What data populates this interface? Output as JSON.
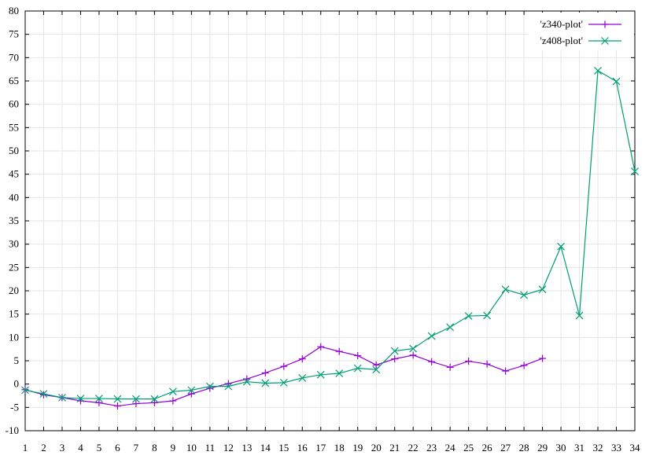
{
  "chart_data": {
    "type": "line",
    "title": "",
    "xlabel": "",
    "ylabel": "",
    "xlim": [
      1,
      34
    ],
    "ylim": [
      -10,
      80
    ],
    "x_ticks": [
      1,
      2,
      3,
      4,
      5,
      6,
      7,
      8,
      9,
      10,
      11,
      12,
      13,
      14,
      15,
      16,
      17,
      18,
      19,
      20,
      21,
      22,
      23,
      24,
      25,
      26,
      27,
      28,
      29,
      30,
      31,
      32,
      33,
      34
    ],
    "y_ticks": [
      -10,
      -5,
      0,
      5,
      10,
      15,
      20,
      25,
      30,
      35,
      40,
      45,
      50,
      55,
      60,
      65,
      70,
      75,
      80
    ],
    "grid": true,
    "legend_position": "top-right",
    "series": [
      {
        "name": "'z340-plot'",
        "color": "#9400d3",
        "marker": "plus",
        "x": [
          1,
          2,
          3,
          4,
          5,
          6,
          7,
          8,
          9,
          10,
          11,
          12,
          13,
          14,
          15,
          16,
          17,
          18,
          19,
          20,
          21,
          22,
          23,
          24,
          25,
          26,
          27,
          28,
          29
        ],
        "values": [
          -1.2,
          -2.3,
          -2.9,
          -3.6,
          -4.0,
          -4.7,
          -4.2,
          -4.0,
          -3.6,
          -2.1,
          -0.9,
          0.1,
          1.1,
          2.4,
          3.8,
          5.4,
          8.0,
          7.0,
          6.1,
          4.1,
          5.4,
          6.2,
          4.8,
          3.6,
          4.9,
          4.3,
          2.8,
          4.0,
          5.5
        ]
      },
      {
        "name": "'z408-plot'",
        "color": "#009e73",
        "marker": "cross",
        "x": [
          1,
          2,
          3,
          4,
          5,
          6,
          7,
          8,
          9,
          10,
          11,
          12,
          13,
          14,
          15,
          16,
          17,
          18,
          19,
          20,
          21,
          22,
          23,
          24,
          25,
          26,
          27,
          28,
          29,
          30,
          31,
          32,
          33,
          34
        ],
        "values": [
          -1.3,
          -2.1,
          -2.9,
          -3.1,
          -3.1,
          -3.2,
          -3.2,
          -3.2,
          -1.6,
          -1.3,
          -0.5,
          -0.5,
          0.5,
          0.2,
          0.3,
          1.3,
          2.0,
          2.3,
          3.4,
          3.1,
          7.1,
          7.6,
          10.3,
          12.2,
          14.6,
          14.7,
          20.3,
          19.1,
          20.3,
          29.5,
          14.7,
          67.2,
          64.9,
          45.6
        ]
      }
    ]
  }
}
